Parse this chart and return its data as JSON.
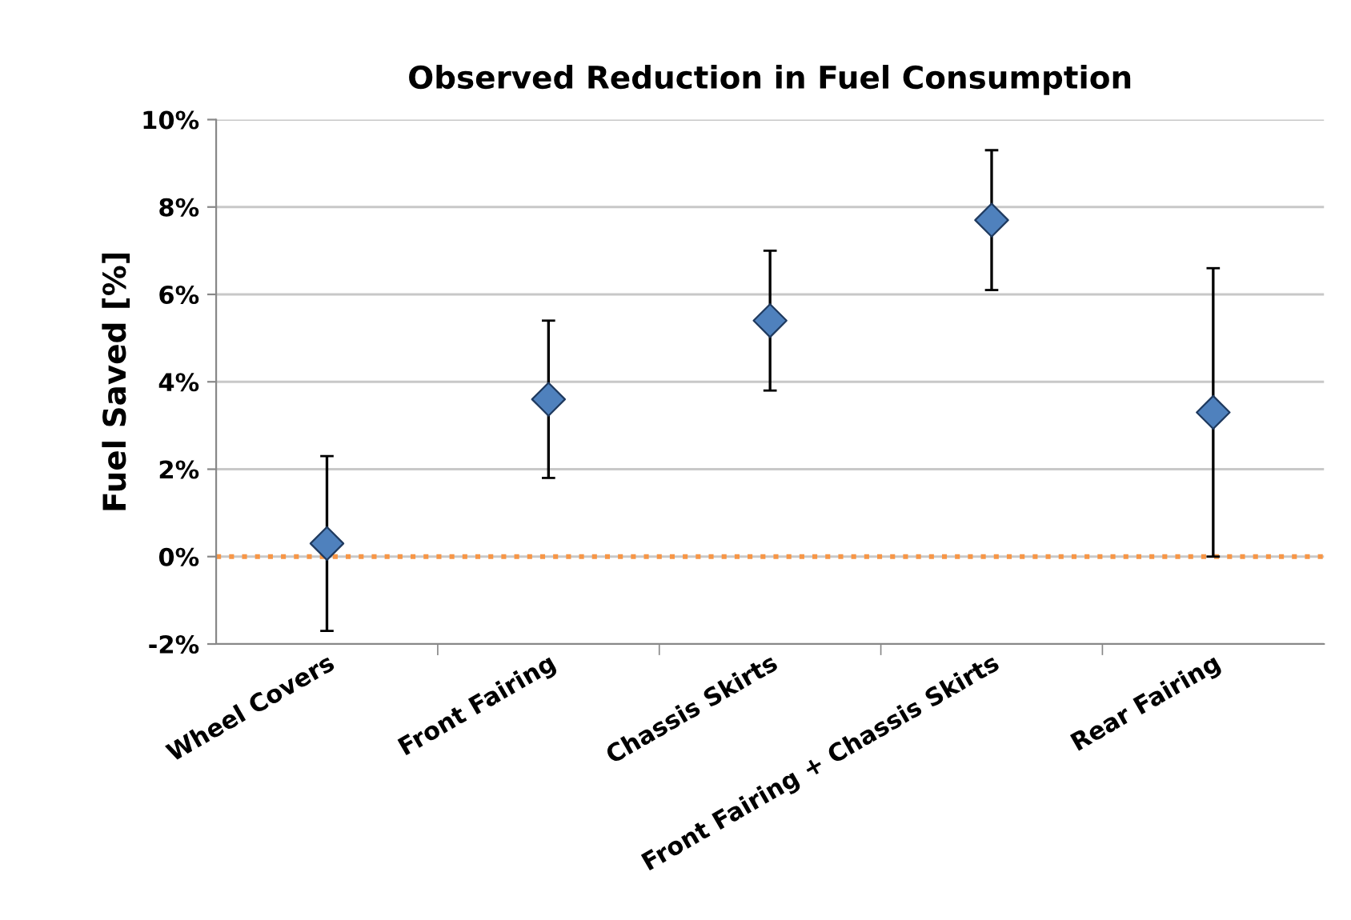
{
  "chart_data": {
    "type": "scatter",
    "title": "Observed Reduction in Fuel Consumption",
    "ylabel": "Fuel Saved [%]",
    "categories": [
      "Wheel Covers",
      "Front Fairing",
      "Chassis Skirts",
      "Front Fairing + Chassis Skirts",
      "Rear Fairing"
    ],
    "series": [
      {
        "color": "#4f81bd",
        "values": [
          0.3,
          3.6,
          5.4,
          7.7,
          3.3
        ],
        "errors": [
          2.0,
          1.8,
          1.6,
          1.6,
          3.3
        ]
      }
    ],
    "marker": "diamond",
    "ylim": [
      -2,
      10
    ],
    "yticks": [
      {
        "value": -2,
        "label": "-2%"
      },
      {
        "value": 0,
        "label": "0%"
      },
      {
        "value": 2,
        "label": "2%"
      },
      {
        "value": 4,
        "label": "4%"
      },
      {
        "value": 6,
        "label": "6%"
      },
      {
        "value": 8,
        "label": "8%"
      },
      {
        "value": 10,
        "label": "10%"
      }
    ],
    "grid": "y",
    "legend": false,
    "ref_lines": [
      {
        "axis": "y",
        "value": 0,
        "color": "#f79646",
        "line_style": "dotted"
      }
    ]
  }
}
